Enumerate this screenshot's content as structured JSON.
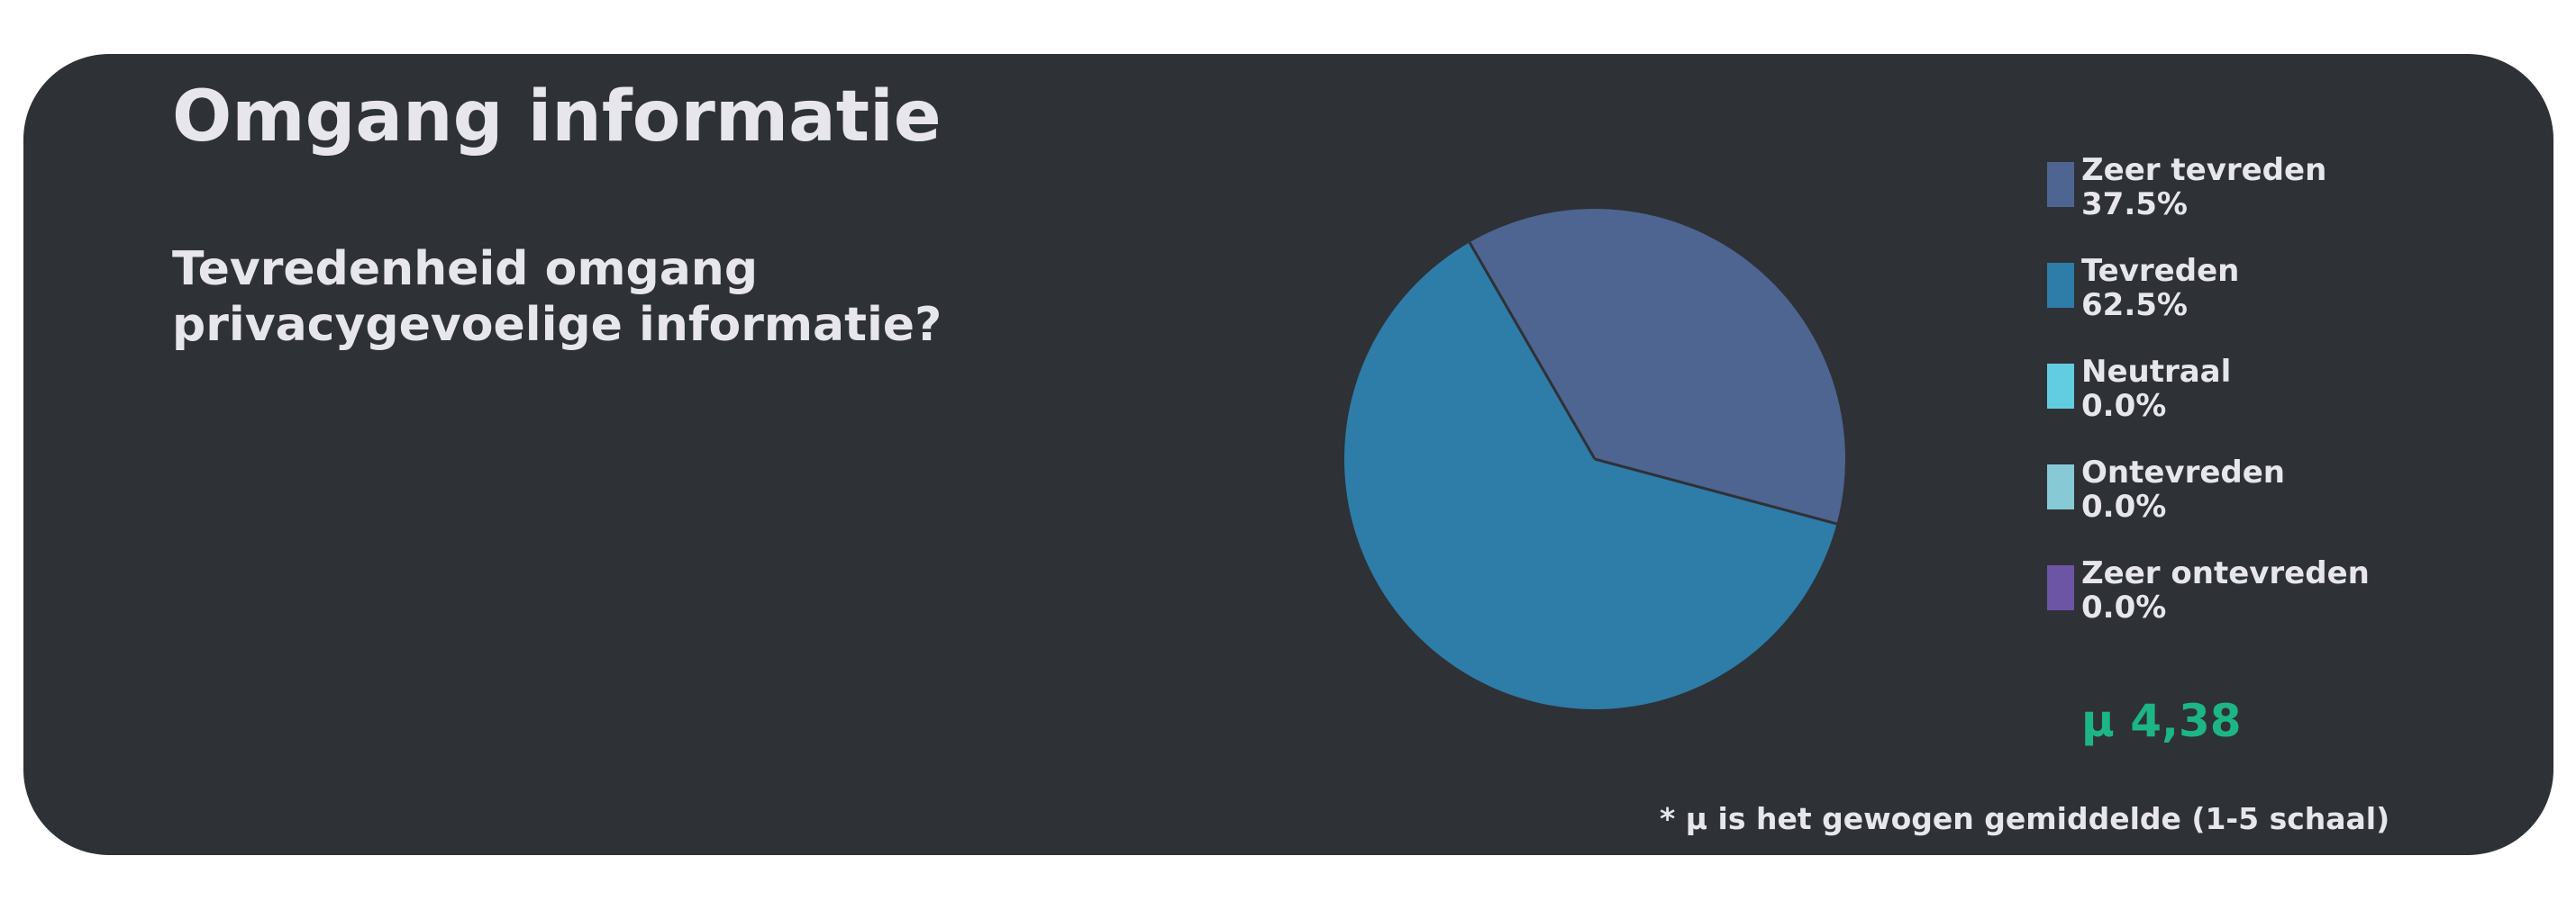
{
  "title": "Omgang informatie",
  "question_lines": [
    "Tevredenheid omgang",
    "privacygevoelige informatie?"
  ],
  "chart_data": {
    "type": "pie",
    "categories": [
      "Zeer tevreden",
      "Tevreden",
      "Neutraal",
      "Ontevreden",
      "Zeer ontevreden"
    ],
    "values": [
      37.5,
      62.5,
      0.0,
      0.0,
      0.0
    ],
    "value_labels": [
      "37.5%",
      "62.5%",
      "0.0%",
      "0.0%",
      "0.0%"
    ],
    "colors": [
      "#4d6590",
      "#2e7ca8",
      "#62cde0",
      "#88c9d6",
      "#6b55a4"
    ],
    "legend": "right",
    "start_angle_deg": -30,
    "direction": "clockwise"
  },
  "mean_label": "μ 4,38",
  "footnote": "* μ is het gewogen gemiddelde (1-5 schaal)",
  "colors": {
    "card_background": "#2e3136",
    "text": "#e6e6ec",
    "mean_accent": "#1db584"
  }
}
